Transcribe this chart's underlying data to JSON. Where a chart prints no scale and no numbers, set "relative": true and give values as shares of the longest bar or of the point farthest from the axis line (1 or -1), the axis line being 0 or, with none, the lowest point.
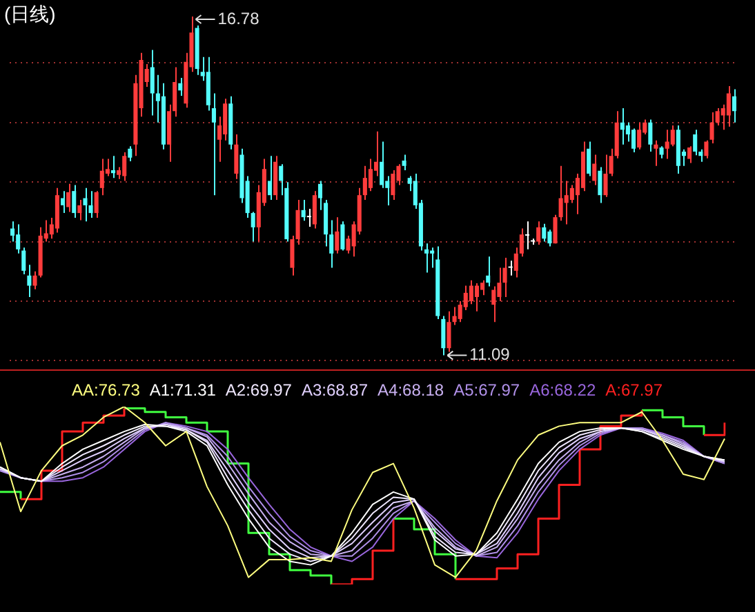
{
  "chart_data": [
    {
      "type": "candlestick",
      "title": "(日线)",
      "categories": [
        null,
        null,
        null,
        null,
        null,
        null,
        null,
        null,
        null,
        null,
        null,
        null,
        null,
        null,
        null,
        null,
        null,
        null,
        null,
        null,
        null,
        null,
        null,
        null,
        null,
        null,
        null,
        null,
        null,
        null,
        null,
        null,
        null,
        null,
        null,
        null,
        null,
        null,
        null,
        null,
        null,
        null,
        null,
        null,
        null,
        null,
        null,
        null,
        null,
        null,
        null,
        null,
        null,
        null,
        null,
        null,
        null,
        null,
        null,
        null,
        null,
        null,
        null,
        null,
        null,
        null,
        null,
        null,
        null,
        null,
        null,
        null,
        null,
        null,
        null,
        null,
        null,
        null,
        null,
        null,
        null,
        null,
        null,
        null,
        null,
        null,
        null,
        null,
        null,
        null,
        null,
        null,
        null,
        null,
        null,
        null,
        null,
        null,
        null,
        null,
        null,
        null,
        null,
        null,
        null,
        null,
        null,
        null,
        null,
        null,
        null,
        null,
        null,
        null,
        null,
        null,
        null,
        null,
        null,
        null,
        null,
        null,
        null,
        null,
        null,
        null,
        null,
        null,
        null,
        null
      ],
      "ohlc": [
        [
          13.22,
          13.34,
          13.0,
          13.1
        ],
        [
          13.12,
          13.29,
          12.8,
          12.87
        ],
        [
          12.85,
          12.9,
          12.45,
          12.51
        ],
        [
          12.43,
          12.61,
          12.07,
          12.26
        ],
        [
          12.26,
          12.5,
          12.2,
          12.43
        ],
        [
          12.43,
          13.24,
          12.4,
          13.1
        ],
        [
          13.05,
          13.36,
          13.0,
          13.14
        ],
        [
          13.12,
          13.4,
          13.05,
          13.29
        ],
        [
          13.22,
          13.9,
          13.15,
          13.78
        ],
        [
          13.73,
          13.85,
          13.48,
          13.61
        ],
        [
          13.58,
          13.97,
          13.5,
          13.83
        ],
        [
          13.85,
          13.95,
          13.4,
          13.48
        ],
        [
          13.48,
          13.7,
          13.36,
          13.61
        ],
        [
          13.73,
          13.9,
          13.34,
          13.61
        ],
        [
          13.61,
          13.85,
          13.4,
          13.48
        ],
        [
          13.48,
          13.85,
          13.4,
          13.83
        ],
        [
          13.9,
          14.39,
          13.78,
          14.19
        ],
        [
          14.14,
          14.39,
          14.1,
          14.22
        ],
        [
          14.2,
          14.44,
          14.07,
          14.15
        ],
        [
          14.12,
          14.25,
          14.05,
          14.2
        ],
        [
          14.1,
          14.5,
          14.02,
          14.44
        ],
        [
          14.56,
          14.6,
          14.35,
          14.41
        ],
        [
          14.63,
          15.8,
          14.44,
          15.66
        ],
        [
          15.24,
          16.17,
          15.1,
          16.05
        ],
        [
          15.68,
          15.98,
          15.6,
          15.9
        ],
        [
          15.93,
          16.22,
          15.12,
          15.49
        ],
        [
          15.49,
          15.8,
          15.0,
          15.36
        ],
        [
          15.44,
          15.66,
          14.55,
          14.63
        ],
        [
          14.63,
          15.3,
          14.34,
          15.19
        ],
        [
          15.19,
          15.93,
          15.1,
          15.68
        ],
        [
          15.66,
          15.75,
          15.45,
          15.54
        ],
        [
          15.32,
          16.17,
          15.25,
          16.02
        ],
        [
          15.93,
          16.78,
          15.85,
          16.51
        ],
        [
          16.59,
          16.63,
          15.8,
          15.9
        ],
        [
          15.85,
          16.1,
          15.7,
          15.78
        ],
        [
          15.85,
          16.1,
          15.2,
          15.29
        ],
        [
          15.24,
          15.49,
          13.78,
          15.0
        ],
        [
          14.71,
          15.1,
          14.34,
          14.95
        ],
        [
          14.8,
          15.4,
          14.7,
          15.32
        ],
        [
          15.32,
          15.44,
          14.55,
          14.63
        ],
        [
          14.14,
          14.8,
          14.05,
          14.63
        ],
        [
          14.46,
          14.56,
          13.65,
          13.73
        ],
        [
          14.02,
          14.1,
          13.4,
          13.48
        ],
        [
          13.48,
          13.5,
          13.0,
          13.24
        ],
        [
          13.24,
          13.95,
          13.0,
          13.83
        ],
        [
          13.65,
          14.39,
          13.6,
          14.22
        ],
        [
          14.02,
          14.44,
          13.7,
          13.78
        ],
        [
          13.78,
          14.44,
          13.7,
          14.34
        ],
        [
          14.27,
          14.3,
          13.78,
          14.02
        ],
        [
          13.9,
          14.0,
          13.0,
          13.04
        ],
        [
          12.56,
          13.1,
          12.43,
          13.04
        ],
        [
          13.04,
          13.7,
          12.95,
          13.53
        ],
        [
          13.53,
          13.7,
          13.35,
          13.41
        ],
        [
          13.41,
          13.55,
          13.25,
          13.41
        ],
        [
          13.29,
          13.85,
          13.22,
          13.78
        ],
        [
          13.97,
          14.02,
          13.53,
          13.73
        ],
        [
          13.65,
          13.7,
          12.92,
          13.12
        ],
        [
          13.12,
          13.36,
          12.56,
          12.8
        ],
        [
          12.85,
          13.41,
          12.8,
          13.17
        ],
        [
          13.29,
          13.34,
          12.85,
          12.87
        ],
        [
          12.85,
          13.1,
          12.8,
          13.05
        ],
        [
          12.92,
          13.34,
          12.75,
          13.29
        ],
        [
          13.17,
          13.9,
          13.12,
          13.78
        ],
        [
          13.78,
          14.27,
          13.7,
          14.07
        ],
        [
          13.9,
          14.39,
          13.85,
          14.22
        ],
        [
          14.19,
          14.85,
          14.1,
          14.34
        ],
        [
          14.34,
          14.68,
          13.9,
          13.95
        ],
        [
          14.02,
          14.1,
          13.61,
          13.9
        ],
        [
          13.78,
          14.2,
          13.7,
          14.14
        ],
        [
          14.02,
          14.3,
          13.95,
          14.27
        ],
        [
          14.36,
          14.46,
          14.2,
          14.27
        ],
        [
          14.07,
          14.1,
          13.85,
          13.97
        ],
        [
          14.02,
          14.14,
          13.55,
          13.61
        ],
        [
          13.65,
          13.7,
          12.85,
          12.92
        ],
        [
          12.87,
          12.97,
          12.48,
          12.8
        ],
        [
          12.85,
          12.9,
          12.56,
          12.8
        ],
        [
          12.7,
          12.92,
          11.7,
          11.75
        ],
        [
          11.7,
          11.75,
          11.09,
          11.21
        ],
        [
          11.21,
          11.83,
          11.15,
          11.65
        ],
        [
          11.65,
          11.9,
          11.6,
          11.75
        ],
        [
          11.7,
          12.0,
          11.65,
          11.94
        ],
        [
          11.9,
          12.26,
          11.85,
          12.14
        ],
        [
          12.0,
          12.35,
          11.95,
          12.26
        ],
        [
          12.07,
          12.3,
          11.83,
          12.26
        ],
        [
          12.19,
          12.35,
          12.1,
          12.31
        ],
        [
          12.43,
          12.75,
          12.25,
          12.31
        ],
        [
          11.94,
          12.25,
          11.65,
          12.19
        ],
        [
          12.07,
          12.56,
          12.0,
          12.31
        ],
        [
          12.31,
          12.73,
          12.07,
          12.56
        ],
        [
          12.56,
          12.68,
          12.43,
          12.56
        ],
        [
          12.51,
          12.9,
          12.4,
          12.8
        ],
        [
          12.8,
          13.22,
          12.75,
          13.12
        ],
        [
          13.1,
          13.34,
          12.87,
          13.1
        ],
        [
          13.0,
          13.05,
          12.95,
          13.0
        ],
        [
          13.0,
          13.34,
          12.95,
          13.24
        ],
        [
          13.24,
          13.3,
          13.0,
          13.05
        ],
        [
          13.17,
          13.2,
          12.92,
          12.97
        ],
        [
          12.97,
          13.45,
          12.97,
          13.41
        ],
        [
          13.41,
          14.27,
          13.35,
          13.73
        ],
        [
          13.65,
          14.02,
          13.29,
          13.78
        ],
        [
          13.7,
          13.95,
          13.65,
          13.9
        ],
        [
          13.78,
          14.14,
          13.46,
          14.07
        ],
        [
          13.9,
          14.68,
          13.85,
          14.51
        ],
        [
          14.56,
          14.68,
          14.1,
          14.14
        ],
        [
          14.02,
          14.46,
          13.95,
          14.31
        ],
        [
          14.19,
          14.25,
          13.65,
          13.78
        ],
        [
          13.78,
          14.46,
          13.75,
          14.14
        ],
        [
          14.14,
          14.56,
          14.1,
          14.44
        ],
        [
          14.44,
          15.19,
          14.4,
          15.0
        ],
        [
          15.0,
          15.24,
          14.63,
          14.88
        ],
        [
          14.95,
          15.0,
          14.68,
          14.8
        ],
        [
          14.88,
          14.9,
          14.5,
          14.56
        ],
        [
          14.58,
          15.0,
          14.55,
          14.88
        ],
        [
          14.83,
          15.05,
          14.8,
          15.0
        ],
        [
          15.0,
          15.05,
          14.51,
          14.63
        ],
        [
          14.56,
          14.7,
          14.27,
          14.63
        ],
        [
          14.58,
          14.6,
          14.4,
          14.46
        ],
        [
          14.56,
          14.88,
          14.39,
          14.68
        ],
        [
          14.63,
          14.95,
          14.6,
          14.88
        ],
        [
          14.88,
          14.95,
          14.14,
          14.27
        ],
        [
          14.51,
          14.55,
          14.27,
          14.44
        ],
        [
          14.39,
          14.6,
          14.32,
          14.58
        ],
        [
          14.8,
          14.88,
          14.45,
          14.51
        ],
        [
          14.51,
          14.55,
          14.34,
          14.44
        ],
        [
          14.44,
          14.7,
          14.4,
          14.68
        ],
        [
          14.71,
          15.17,
          14.65,
          15.0
        ],
        [
          15.0,
          15.24,
          14.95,
          15.19
        ],
        [
          15.12,
          15.3,
          14.88,
          15.24
        ],
        [
          15.12,
          15.61,
          14.93,
          15.49
        ],
        [
          15.44,
          15.56,
          15.0,
          15.19
        ]
      ],
      "colors": [
        "#54fcfc",
        "#54fcfc",
        "#54fcfc",
        "#54fcfc",
        "#ff3c3c",
        "#ff3c3c",
        "#ff3c3c",
        "#ff3c3c",
        "#ff3c3c",
        "#54fcfc",
        "#ff3c3c",
        "#54fcfc",
        "#ff3c3c",
        "#54fcfc",
        "#54fcfc",
        "#ff3c3c",
        "#ff3c3c",
        "#ff3c3c",
        "#54fcfc",
        "#ff3c3c",
        "#ff3c3c",
        "#54fcfc",
        "#ff3c3c",
        "#ff3c3c",
        "#ff3c3c",
        "#54fcfc",
        "#54fcfc",
        "#54fcfc",
        "#ff3c3c",
        "#ff3c3c",
        "#54fcfc",
        "#ff3c3c",
        "#ff3c3c",
        "#54fcfc",
        "#54fcfc",
        "#54fcfc",
        "#54fcfc",
        "#ff3c3c",
        "#ff3c3c",
        "#54fcfc",
        "#ff3c3c",
        "#54fcfc",
        "#54fcfc",
        "#54fcfc",
        "#ff3c3c",
        "#ff3c3c",
        "#54fcfc",
        "#ff3c3c",
        "#54fcfc",
        "#54fcfc",
        "#ff3c3c",
        "#ff3c3c",
        "#54fcfc",
        "#ffffff",
        "#ff3c3c",
        "#54fcfc",
        "#54fcfc",
        "#54fcfc",
        "#ff3c3c",
        "#54fcfc",
        "#ff3c3c",
        "#ff3c3c",
        "#ff3c3c",
        "#ff3c3c",
        "#ff3c3c",
        "#ff3c3c",
        "#54fcfc",
        "#54fcfc",
        "#ff3c3c",
        "#ff3c3c",
        "#54fcfc",
        "#54fcfc",
        "#54fcfc",
        "#54fcfc",
        "#54fcfc",
        "#54fcfc",
        "#54fcfc",
        "#54fcfc",
        "#ff3c3c",
        "#ff3c3c",
        "#ff3c3c",
        "#ff3c3c",
        "#ff3c3c",
        "#ff3c3c",
        "#ff3c3c",
        "#54fcfc",
        "#ff3c3c",
        "#ff3c3c",
        "#ff3c3c",
        "#ffffff",
        "#ff3c3c",
        "#ff3c3c",
        "#ffffff",
        "#ffffff",
        "#ff3c3c",
        "#54fcfc",
        "#54fcfc",
        "#ff3c3c",
        "#ff3c3c",
        "#ff3c3c",
        "#ff3c3c",
        "#ff3c3c",
        "#ff3c3c",
        "#54fcfc",
        "#ff3c3c",
        "#54fcfc",
        "#ff3c3c",
        "#ff3c3c",
        "#ff3c3c",
        "#54fcfc",
        "#54fcfc",
        "#54fcfc",
        "#ff3c3c",
        "#ff3c3c",
        "#54fcfc",
        "#ff3c3c",
        "#54fcfc",
        "#ff3c3c",
        "#ff3c3c",
        "#54fcfc",
        "#54fcfc",
        "#ff3c3c",
        "#54fcfc",
        "#54fcfc",
        "#ff3c3c",
        "#ff3c3c",
        "#ff3c3c",
        "#ff3c3c",
        "#ff3c3c",
        "#54fcfc"
      ],
      "yticks": [
        {
          "value": 11,
          "label": null
        },
        {
          "value": 12,
          "label": null
        },
        {
          "value": 13,
          "label": null
        },
        {
          "value": 14,
          "label": null
        },
        {
          "value": 15,
          "label": null
        },
        {
          "value": 16,
          "label": null
        }
      ],
      "grid": true,
      "annotations": [
        "16.78",
        "11.09"
      ]
    },
    {
      "type": "line",
      "relative": true,
      "categories": [
        null,
        null,
        null,
        null,
        null,
        null,
        null,
        null,
        null,
        null,
        null,
        null,
        null,
        null,
        null,
        null,
        null,
        null,
        null,
        null,
        null,
        null,
        null,
        null,
        null,
        null,
        null,
        null,
        null,
        null,
        null,
        null,
        null,
        null,
        null,
        null
      ],
      "series": [
        {
          "color": "#ffff80",
          "values": [
            0.8,
            0.41,
            0.64,
            0.78,
            0.84,
            0.94,
            1.0,
            0.91,
            0.78,
            0.86,
            0.55,
            0.33,
            0.04,
            0.14,
            0.14,
            0.15,
            0.13,
            0.42,
            0.63,
            0.68,
            0.43,
            0.11,
            0.04,
            0.19,
            0.47,
            0.7,
            0.84,
            0.89,
            0.91,
            0.91,
            0.91,
            0.97,
            0.81,
            0.62,
            0.59,
            0.82
          ]
        },
        {
          "color": "#ffffff",
          "values": [
            0.66,
            0.6,
            0.58,
            0.68,
            0.76,
            0.81,
            0.86,
            0.9,
            0.89,
            0.86,
            0.78,
            0.56,
            0.37,
            0.21,
            0.13,
            0.11,
            0.16,
            0.29,
            0.45,
            0.52,
            0.48,
            0.25,
            0.16,
            0.17,
            0.29,
            0.48,
            0.68,
            0.8,
            0.86,
            0.88,
            0.88,
            0.86,
            0.81,
            0.76,
            0.72,
            0.7
          ]
        },
        {
          "color": "#f0e8ff",
          "values": [
            0.66,
            0.6,
            0.58,
            0.66,
            0.73,
            0.78,
            0.84,
            0.89,
            0.89,
            0.87,
            0.8,
            0.6,
            0.42,
            0.26,
            0.17,
            0.13,
            0.16,
            0.26,
            0.4,
            0.49,
            0.48,
            0.27,
            0.18,
            0.17,
            0.26,
            0.44,
            0.64,
            0.77,
            0.84,
            0.87,
            0.88,
            0.86,
            0.82,
            0.77,
            0.72,
            0.7
          ]
        },
        {
          "color": "#e0d0ff",
          "values": [
            0.65,
            0.6,
            0.58,
            0.64,
            0.7,
            0.75,
            0.82,
            0.88,
            0.9,
            0.87,
            0.81,
            0.64,
            0.46,
            0.31,
            0.2,
            0.15,
            0.16,
            0.23,
            0.35,
            0.46,
            0.48,
            0.3,
            0.2,
            0.17,
            0.23,
            0.4,
            0.6,
            0.74,
            0.82,
            0.86,
            0.88,
            0.87,
            0.83,
            0.78,
            0.72,
            0.69
          ]
        },
        {
          "color": "#c8b0f0",
          "values": [
            0.65,
            0.6,
            0.58,
            0.62,
            0.66,
            0.72,
            0.8,
            0.88,
            0.9,
            0.88,
            0.83,
            0.68,
            0.51,
            0.35,
            0.24,
            0.17,
            0.16,
            0.19,
            0.31,
            0.43,
            0.47,
            0.32,
            0.21,
            0.16,
            0.21,
            0.37,
            0.56,
            0.7,
            0.8,
            0.86,
            0.88,
            0.87,
            0.84,
            0.79,
            0.72,
            0.69
          ]
        },
        {
          "color": "#b090e8",
          "values": [
            0.64,
            0.6,
            0.58,
            0.6,
            0.63,
            0.69,
            0.78,
            0.87,
            0.91,
            0.88,
            0.84,
            0.72,
            0.55,
            0.4,
            0.27,
            0.19,
            0.16,
            0.16,
            0.26,
            0.4,
            0.47,
            0.35,
            0.23,
            0.16,
            0.18,
            0.33,
            0.52,
            0.67,
            0.78,
            0.85,
            0.88,
            0.88,
            0.84,
            0.8,
            0.72,
            0.68
          ]
        },
        {
          "color": "#9966dd",
          "values": [
            0.64,
            0.6,
            0.58,
            0.58,
            0.6,
            0.66,
            0.76,
            0.86,
            0.91,
            0.89,
            0.86,
            0.76,
            0.6,
            0.45,
            0.31,
            0.21,
            0.16,
            0.13,
            0.21,
            0.37,
            0.47,
            0.37,
            0.25,
            0.16,
            0.15,
            0.29,
            0.48,
            0.64,
            0.76,
            0.84,
            0.88,
            0.88,
            0.85,
            0.81,
            0.72,
            0.68
          ]
        },
        {
          "type": "step",
          "color": "#ff2020",
          "values": [
            null,
            0.48,
            0.64,
            0.86,
            0.91,
            0.95,
            0.99,
            null,
            null,
            null,
            null,
            null,
            null,
            null,
            null,
            null,
            0.0,
            0.03,
            0.19,
            0.37,
            null,
            null,
            0.03,
            0.03,
            0.09,
            0.17,
            0.37,
            0.56,
            0.76,
            0.89,
            0.95,
            0.98,
            null,
            null,
            0.84,
            0.91
          ]
        },
        {
          "type": "step",
          "color": "#40ff40",
          "values": [
            0.52,
            0.48,
            null,
            null,
            null,
            null,
            0.99,
            0.97,
            0.94,
            0.91,
            0.86,
            0.68,
            0.29,
            0.17,
            0.08,
            0.05,
            0.0,
            null,
            null,
            0.37,
            0.31,
            0.17,
            0.03,
            null,
            null,
            null,
            null,
            null,
            null,
            null,
            null,
            0.98,
            0.94,
            0.89,
            0.84,
            null
          ]
        }
      ],
      "annotations": [
        "AA:76.73",
        "A1:71.31",
        "A2:69.97",
        "A3:68.87",
        "A4:68.18",
        "A5:67.97",
        "A6:68.22",
        "A:67.97"
      ]
    }
  ]
}
